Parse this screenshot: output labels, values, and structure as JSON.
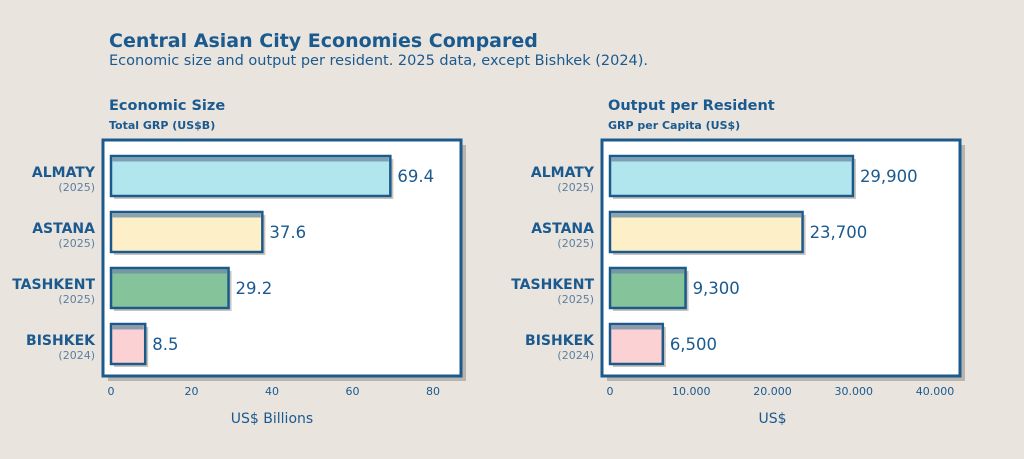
{
  "title": "Central Asian City Economies Compared",
  "subtitle": "Economic size and output per resident. 2025 data, except Bishkek (2024).",
  "colors": {
    "frame": "#1d5a8c",
    "shadow": "#b9b4ae",
    "background": "#e9e4de",
    "plot_bg": "#ffffff",
    "bar_fills": [
      "#b2e6ef",
      "#fdf0c8",
      "#85c39a",
      "#fcd1d3"
    ],
    "bar_stripe": "#6f8ea6"
  },
  "chart_data": [
    {
      "type": "bar",
      "orientation": "horizontal",
      "title": "Economic Size",
      "subtitle": "Total GRP (US$B)",
      "categories": [
        "ALMATY",
        "ASTANA",
        "TASHKENT",
        "BISHKEK"
      ],
      "category_years": [
        "(2025)",
        "(2025)",
        "(2025)",
        "(2024)"
      ],
      "values": [
        69.4,
        37.6,
        29.2,
        8.5
      ],
      "value_labels": [
        "69.4",
        "37.6",
        "29.2",
        "8.5"
      ],
      "xlabel": "US$ Billions",
      "xlim": [
        0,
        80
      ],
      "xticks": [
        0,
        20,
        40,
        60,
        80
      ],
      "xtick_labels": [
        "0",
        "20",
        "40",
        "60",
        "80"
      ],
      "grid": false
    },
    {
      "type": "bar",
      "orientation": "horizontal",
      "title": "Output per Resident",
      "subtitle": "GRP per Capita (US$)",
      "categories": [
        "ALMATY",
        "ASTANA",
        "TASHKENT",
        "BISHKEK"
      ],
      "category_years": [
        "(2025)",
        "(2025)",
        "(2025)",
        "(2024)"
      ],
      "values": [
        29900,
        23700,
        9300,
        6500
      ],
      "value_labels": [
        "29,900",
        "23,700",
        "9,300",
        "6,500"
      ],
      "xlabel": "US$",
      "xlim": [
        0,
        40000
      ],
      "xticks": [
        0,
        10000,
        20000,
        30000,
        40000
      ],
      "xtick_labels": [
        "0",
        "10.000",
        "20.000",
        "30.000",
        "40.000"
      ],
      "grid": false
    }
  ]
}
